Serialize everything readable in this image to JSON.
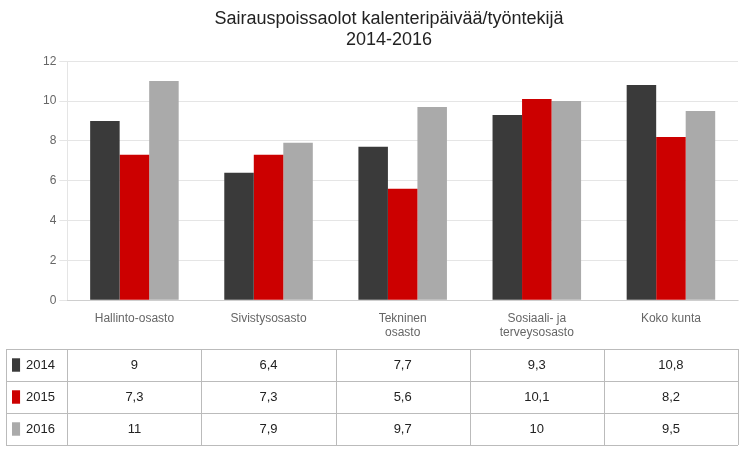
{
  "chart_data": {
    "type": "bar",
    "title": "Sairauspoissaolot kalenteripäivää/työntekijä\n2014-2016",
    "categories": [
      "Hallinto-osasto",
      "Sivistysosasto",
      "Tekninen\nosasto",
      "Sosiaali- ja\nterveysosasto",
      "Koko kunta"
    ],
    "series": [
      {
        "name": "2014",
        "color": "#3a3a3a",
        "values": [
          9,
          6.4,
          7.7,
          9.3,
          10.8
        ],
        "value_labels": [
          "9",
          "6,4",
          "7,7",
          "9,3",
          "10,8"
        ]
      },
      {
        "name": "2015",
        "color": "#cc0000",
        "values": [
          7.3,
          7.3,
          5.6,
          10.1,
          8.2
        ],
        "value_labels": [
          "7,3",
          "7,3",
          "5,6",
          "10,1",
          "8,2"
        ]
      },
      {
        "name": "2016",
        "color": "#aaaaaa",
        "values": [
          11,
          7.9,
          9.7,
          10,
          9.5
        ],
        "value_labels": [
          "11",
          "7,9",
          "9,7",
          "10",
          "9,5"
        ]
      }
    ],
    "ylim": [
      0,
      12
    ],
    "yticks": [
      0,
      2,
      4,
      6,
      8,
      10,
      12
    ],
    "grid": true
  }
}
